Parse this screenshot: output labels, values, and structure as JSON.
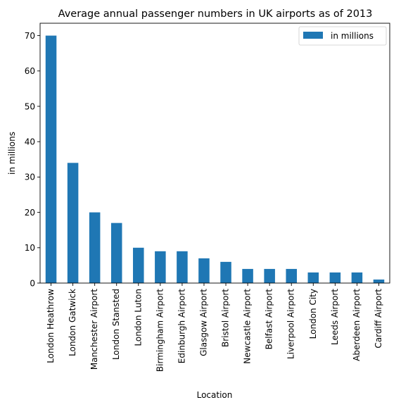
{
  "chart_data": {
    "type": "bar",
    "title": "Average annual passenger numbers in UK airports as of 2013",
    "xlabel": "Location",
    "ylabel": "in millions",
    "categories": [
      "London Heathrow",
      "London Gatwick",
      "Manchester Airport",
      "London Stansted",
      "London Luton",
      "Birmingham Airport",
      "Edinburgh Airport",
      "Glasgow Airport",
      "Bristol Airport",
      "Newcastle Airport",
      "Belfast Airport",
      "Liverpool Airport",
      "London City",
      "Leeds Airport",
      "Aberdeen Airport",
      "Cardiff Airport"
    ],
    "series": [
      {
        "name": "in millions",
        "values": [
          70,
          34,
          20,
          17,
          10,
          9,
          9,
          7,
          6,
          4,
          4,
          4,
          3,
          3,
          3,
          1
        ],
        "color": "#1f77b4"
      }
    ],
    "ylim": [
      0,
      73.5
    ],
    "yticks": [
      0,
      10,
      20,
      30,
      40,
      50,
      60,
      70
    ],
    "grid": false,
    "legend": "top-right"
  }
}
